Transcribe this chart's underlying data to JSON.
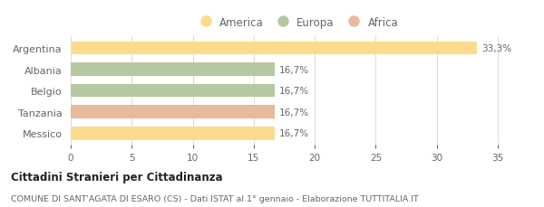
{
  "categories": [
    "Messico",
    "Tanzania",
    "Belgio",
    "Albania",
    "Argentina"
  ],
  "values": [
    16.7,
    16.7,
    16.7,
    16.7,
    33.3
  ],
  "colors": [
    "#FADC8C",
    "#E8B99A",
    "#B5C9A0",
    "#B5C9A0",
    "#FADC8C"
  ],
  "bar_labels": [
    "16,7%",
    "16,7%",
    "16,7%",
    "16,7%",
    "33,3%"
  ],
  "legend_items": [
    {
      "label": "America",
      "color": "#FADC8C"
    },
    {
      "label": "Europa",
      "color": "#B5C9A0"
    },
    {
      "label": "Africa",
      "color": "#E8B99A"
    }
  ],
  "xlim": [
    0,
    37
  ],
  "xticks": [
    0,
    5,
    10,
    15,
    20,
    25,
    30,
    35
  ],
  "title_bold": "Cittadini Stranieri per Cittadinanza",
  "subtitle": "COMUNE DI SANT'AGATA DI ESARO (CS) - Dati ISTAT al 1° gennaio - Elaborazione TUTTITALIA.IT",
  "background_color": "#FFFFFF",
  "grid_color": "#DDDDDD",
  "text_color": "#666666",
  "bar_height": 0.62
}
